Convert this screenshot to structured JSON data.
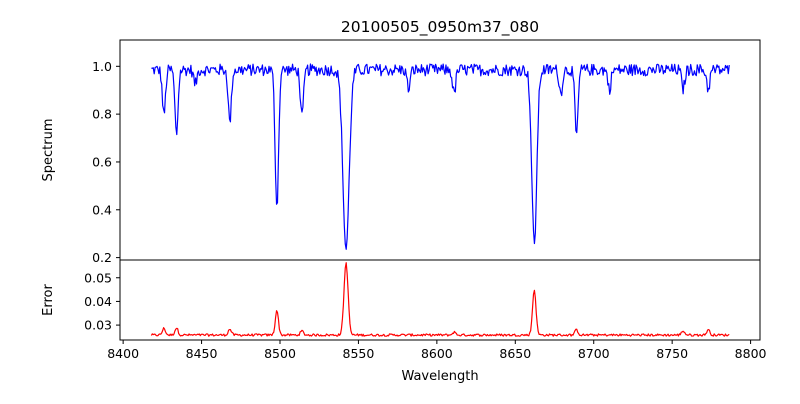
{
  "chart_data": {
    "title": "20100505_0950m37_080",
    "xlabel": "Wavelength",
    "xlim": [
      8398,
      8806
    ],
    "xticks": [
      8400,
      8450,
      8500,
      8550,
      8600,
      8650,
      8700,
      8750,
      8800
    ],
    "panels": [
      {
        "name": "spectrum",
        "type": "line",
        "ylabel": "Spectrum",
        "ylim": [
          0.19,
          1.11
        ],
        "yticks": [
          0.2,
          0.4,
          0.6,
          0.8,
          1.0
        ],
        "ytick_labels": [
          "0.2",
          "0.4",
          "0.6",
          "0.8",
          "1.0"
        ],
        "color": "#0000ff",
        "x_range": [
          8418,
          8787
        ],
        "continuum": 0.985,
        "noise": 0.025,
        "lines": [
          {
            "center": 8426,
            "depth": 0.19,
            "width": 1.0
          },
          {
            "center": 8434,
            "depth": 0.27,
            "width": 1.0
          },
          {
            "center": 8446,
            "depth": 0.06,
            "width": 1.0
          },
          {
            "center": 8468,
            "depth": 0.22,
            "width": 1.0
          },
          {
            "center": 8498.0,
            "depth": 0.57,
            "width": 1.1
          },
          {
            "center": 8514,
            "depth": 0.2,
            "width": 1.0
          },
          {
            "center": 8542.1,
            "depth": 0.75,
            "width": 2.0
          },
          {
            "center": 8582,
            "depth": 0.08,
            "width": 1.0
          },
          {
            "center": 8611,
            "depth": 0.1,
            "width": 1.0
          },
          {
            "center": 8662.1,
            "depth": 0.73,
            "width": 1.6
          },
          {
            "center": 8679,
            "depth": 0.1,
            "width": 1.0
          },
          {
            "center": 8689,
            "depth": 0.28,
            "width": 1.0
          },
          {
            "center": 8710,
            "depth": 0.08,
            "width": 1.0
          },
          {
            "center": 8757,
            "depth": 0.08,
            "width": 1.0
          },
          {
            "center": 8773,
            "depth": 0.08,
            "width": 1.0
          }
        ]
      },
      {
        "name": "error",
        "type": "line",
        "ylabel": "Error",
        "ylim": [
          0.0237,
          0.0575
        ],
        "yticks": [
          0.03,
          0.04,
          0.05
        ],
        "ytick_labels": [
          "0.03",
          "0.04",
          "0.05"
        ],
        "color": "#ff0000",
        "x_range": [
          8418,
          8787
        ],
        "baseline": 0.0258,
        "noise": 0.0005,
        "peaks": [
          {
            "center": 8426,
            "height": 0.0028,
            "width": 1.0
          },
          {
            "center": 8434,
            "height": 0.003,
            "width": 1.0
          },
          {
            "center": 8468,
            "height": 0.0025,
            "width": 1.0
          },
          {
            "center": 8498.0,
            "height": 0.0105,
            "width": 1.0
          },
          {
            "center": 8514,
            "height": 0.0017,
            "width": 1.0
          },
          {
            "center": 8542.1,
            "height": 0.0305,
            "width": 1.3
          },
          {
            "center": 8611,
            "height": 0.0012,
            "width": 1.0
          },
          {
            "center": 8662.1,
            "height": 0.0192,
            "width": 1.1
          },
          {
            "center": 8689,
            "height": 0.0022,
            "width": 1.0
          },
          {
            "center": 8757,
            "height": 0.0018,
            "width": 1.0
          },
          {
            "center": 8773,
            "height": 0.0022,
            "width": 1.0
          }
        ]
      }
    ]
  }
}
